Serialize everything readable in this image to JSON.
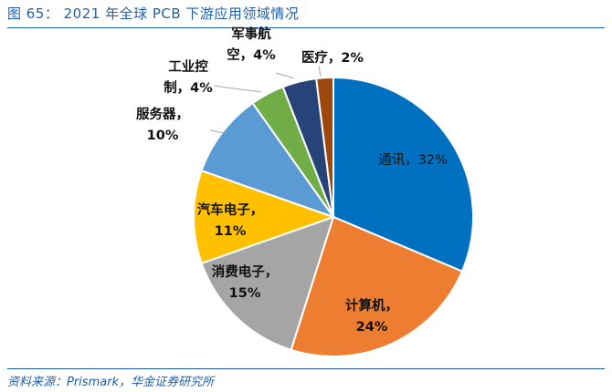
{
  "figure": {
    "title": "图 65：  2021 年全球  PCB  下游应用领域情况",
    "source": "资料来源：Prismark，华金证券研究所"
  },
  "chart_data": {
    "type": "pie",
    "title": "2021 年全球 PCB 下游应用领域情况",
    "unit": "%",
    "start_angle_deg": 0,
    "direction": "clockwise",
    "slices": [
      {
        "label": "通讯",
        "value": 32,
        "display": "通讯，32%",
        "color": "#0070c0"
      },
      {
        "label": "计算机",
        "value": 24,
        "display": "计算机，24%",
        "color": "#ed7d31"
      },
      {
        "label": "消费电子",
        "value": 15,
        "display": "消费电子，15%",
        "color": "#a5a5a5"
      },
      {
        "label": "汽车电子",
        "value": 11,
        "display": "汽车电子，11%",
        "color": "#ffc000"
      },
      {
        "label": "服务器",
        "value": 10,
        "display": "服务器，10%",
        "color": "#5b9bd5"
      },
      {
        "label": "工业控制",
        "value": 4,
        "display": "工业控制，4%",
        "color": "#70ad47"
      },
      {
        "label": "军事航空",
        "value": 4,
        "display": "军事航空，4%",
        "color": "#264478"
      },
      {
        "label": "医疗",
        "value": 2,
        "display": "医疗，2%",
        "color": "#9e480e"
      }
    ]
  }
}
